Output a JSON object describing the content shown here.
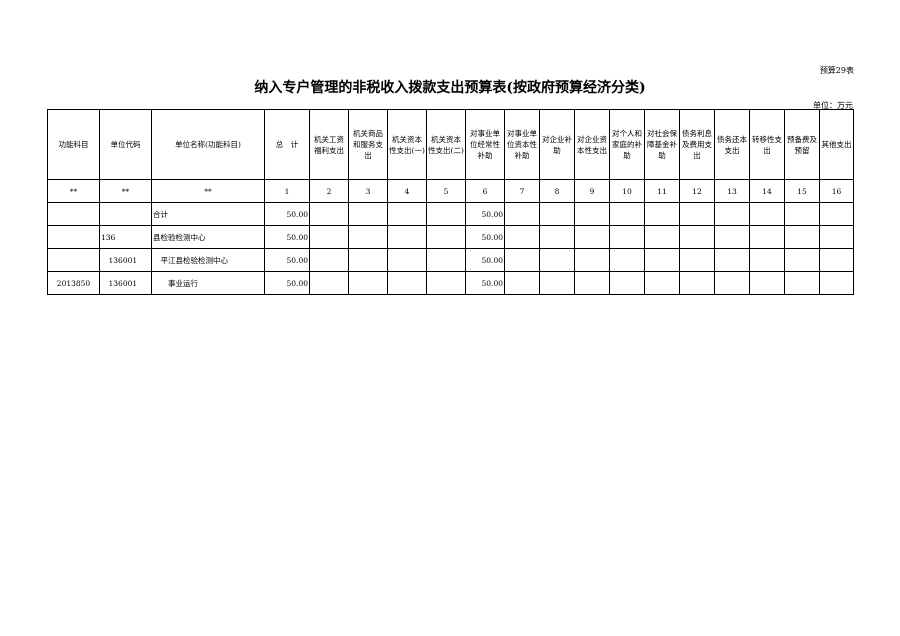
{
  "form_code": "预算29表",
  "title": "纳入专户管理的非税收入拨款支出预算表(按政府预算经济分类)",
  "unit": "单位：万元",
  "columns": [
    "功能科目",
    "单位代码",
    "单位名称(功能科目)",
    "总　计",
    "机关工资福利支出",
    "机关商品和服务支出",
    "机关资本性支出(一)",
    "机关资本性支出(二)",
    "对事业单位经常性补助",
    "对事业单位资本性补助",
    "对企业补助",
    "对企业资本性支出",
    "对个人和家庭的补助",
    "对社会保障基金补助",
    "债务利息及费用支出",
    "债务还本支出",
    "转移性支出",
    "预备费及预留",
    "其他支出"
  ],
  "column_numbers": [
    "**",
    "**",
    "**",
    "1",
    "2",
    "3",
    "4",
    "5",
    "6",
    "7",
    "8",
    "9",
    "10",
    "11",
    "12",
    "13",
    "14",
    "15",
    "16"
  ],
  "rows": [
    {
      "func": "",
      "code": "",
      "name": "合计",
      "total": "50.00",
      "c6": "50.00"
    },
    {
      "func": "",
      "code": "136",
      "name": "县检验检测中心",
      "total": "50.00",
      "c6": "50.00"
    },
    {
      "func": "",
      "code": "　136001",
      "name": "　平江县检验检测中心",
      "total": "50.00",
      "c6": "50.00"
    },
    {
      "func": "2013850",
      "code": "　136001",
      "name": "　　事业运行",
      "total": "50.00",
      "c6": "50.00"
    }
  ]
}
